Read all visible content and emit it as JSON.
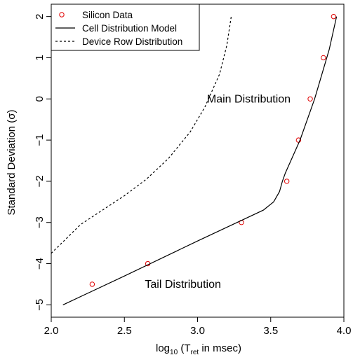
{
  "chart_data": {
    "type": "line",
    "xlabel": {
      "prefix": "log",
      "prefix_sub": "10",
      "middle": " (T",
      "middle_sub": "ret",
      "suffix": " in msec)"
    },
    "ylabel": "Standard Deviation (σ)",
    "xlim": [
      2.0,
      4.0
    ],
    "ylim": [
      -5.3,
      2.3
    ],
    "x_ticks": [
      2.0,
      2.5,
      3.0,
      3.5,
      4.0
    ],
    "x_tick_labels": [
      "2.0",
      "2.5",
      "3.0",
      "3.5",
      "4.0"
    ],
    "y_ticks": [
      -5,
      -4,
      -3,
      -2,
      -1,
      0,
      1,
      2
    ],
    "y_tick_labels": [
      "−5",
      "−4",
      "−3",
      "−2",
      "−1",
      "0",
      "1",
      "2"
    ],
    "legend": {
      "placement": "top-left",
      "entries": [
        {
          "label": "Silicon Data",
          "style": "points"
        },
        {
          "label": "Cell Distribution Model",
          "style": "solid"
        },
        {
          "label": "Device Row Distribution",
          "style": "dashed"
        }
      ]
    },
    "annotations": [
      {
        "text": "Main Distribution",
        "x": 3.35,
        "y": 0.0
      },
      {
        "text": "Tail Distribution",
        "x": 2.9,
        "y": -4.5
      }
    ],
    "series": [
      {
        "name": "Silicon Data",
        "kind": "points",
        "color": "#e00000",
        "x": [
          2.28,
          2.66,
          3.3,
          3.61,
          3.69,
          3.77,
          3.86,
          3.93
        ],
        "y": [
          -4.5,
          -4.0,
          -3.0,
          -2.0,
          -1.0,
          0.0,
          1.0,
          2.0
        ]
      },
      {
        "name": "Cell Distribution Model",
        "kind": "solid",
        "color": "#000000",
        "x": [
          2.08,
          2.5,
          3.0,
          3.3,
          3.45,
          3.52,
          3.56,
          3.58,
          3.6,
          3.7,
          3.8,
          3.9,
          3.95
        ],
        "y": [
          -5.0,
          -4.3,
          -3.45,
          -2.95,
          -2.7,
          -2.5,
          -2.25,
          -2.0,
          -1.8,
          -1.0,
          0.0,
          1.2,
          2.0
        ]
      },
      {
        "name": "Device Row Distribution",
        "kind": "dashed",
        "color": "#000000",
        "x": [
          2.0,
          2.1,
          2.2,
          2.35,
          2.5,
          2.65,
          2.8,
          2.95,
          3.05,
          3.15,
          3.2,
          3.23
        ],
        "y": [
          -3.75,
          -3.4,
          -3.05,
          -2.7,
          -2.35,
          -1.95,
          -1.45,
          -0.8,
          -0.2,
          0.6,
          1.3,
          2.0
        ]
      }
    ]
  }
}
